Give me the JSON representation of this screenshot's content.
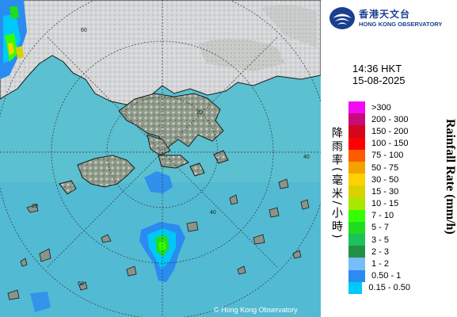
{
  "map": {
    "copyright": "© Hong Kong Observatory",
    "range_ring_labels": [
      "60",
      "40",
      "20",
      "40",
      "60",
      "20"
    ],
    "colors": {
      "sea": "#5bc0d0",
      "land": "#9aa295",
      "cloud": "#d8dadc",
      "coast": "#1a1a1a",
      "grid": "#333333"
    }
  },
  "header": {
    "logo_icon": "hko-logo-icon",
    "org_zh": "香港天文台",
    "org_en": "HONG KONG OBSERVATORY"
  },
  "timestamp": {
    "time": "14:36 HKT",
    "date": "15-08-2025"
  },
  "legend": {
    "title_zh": "降雨率(毫米/小時)",
    "title_en": "Rainfall Rate (mm/h)",
    "items": [
      {
        "label": ">300",
        "color": "#f20cf2"
      },
      {
        "label": "200 - 300",
        "color": "#c80a7c"
      },
      {
        "label": "150 - 200",
        "color": "#d3061d"
      },
      {
        "label": "100 - 150",
        "color": "#ff0000"
      },
      {
        "label": "75 - 100",
        "color": "#fe5c00"
      },
      {
        "label": "50 - 75",
        "color": "#f3a300"
      },
      {
        "label": "30 - 50",
        "color": "#fed100"
      },
      {
        "label": "15 - 30",
        "color": "#dad200"
      },
      {
        "label": "10 - 15",
        "color": "#a6e800"
      },
      {
        "label": "7 - 10",
        "color": "#33ff00"
      },
      {
        "label": "5 - 7",
        "color": "#20dc20"
      },
      {
        "label": "3 - 5",
        "color": "#1cc25a"
      },
      {
        "label": "2 - 3",
        "color": "#239048"
      },
      {
        "label": "1 - 2",
        "color": "#77bdf8"
      },
      {
        "label": "0.50 - 1",
        "color": "#2a8cf0"
      },
      {
        "label": "0.15 - 0.50",
        "color": "#00c8f8"
      }
    ]
  }
}
